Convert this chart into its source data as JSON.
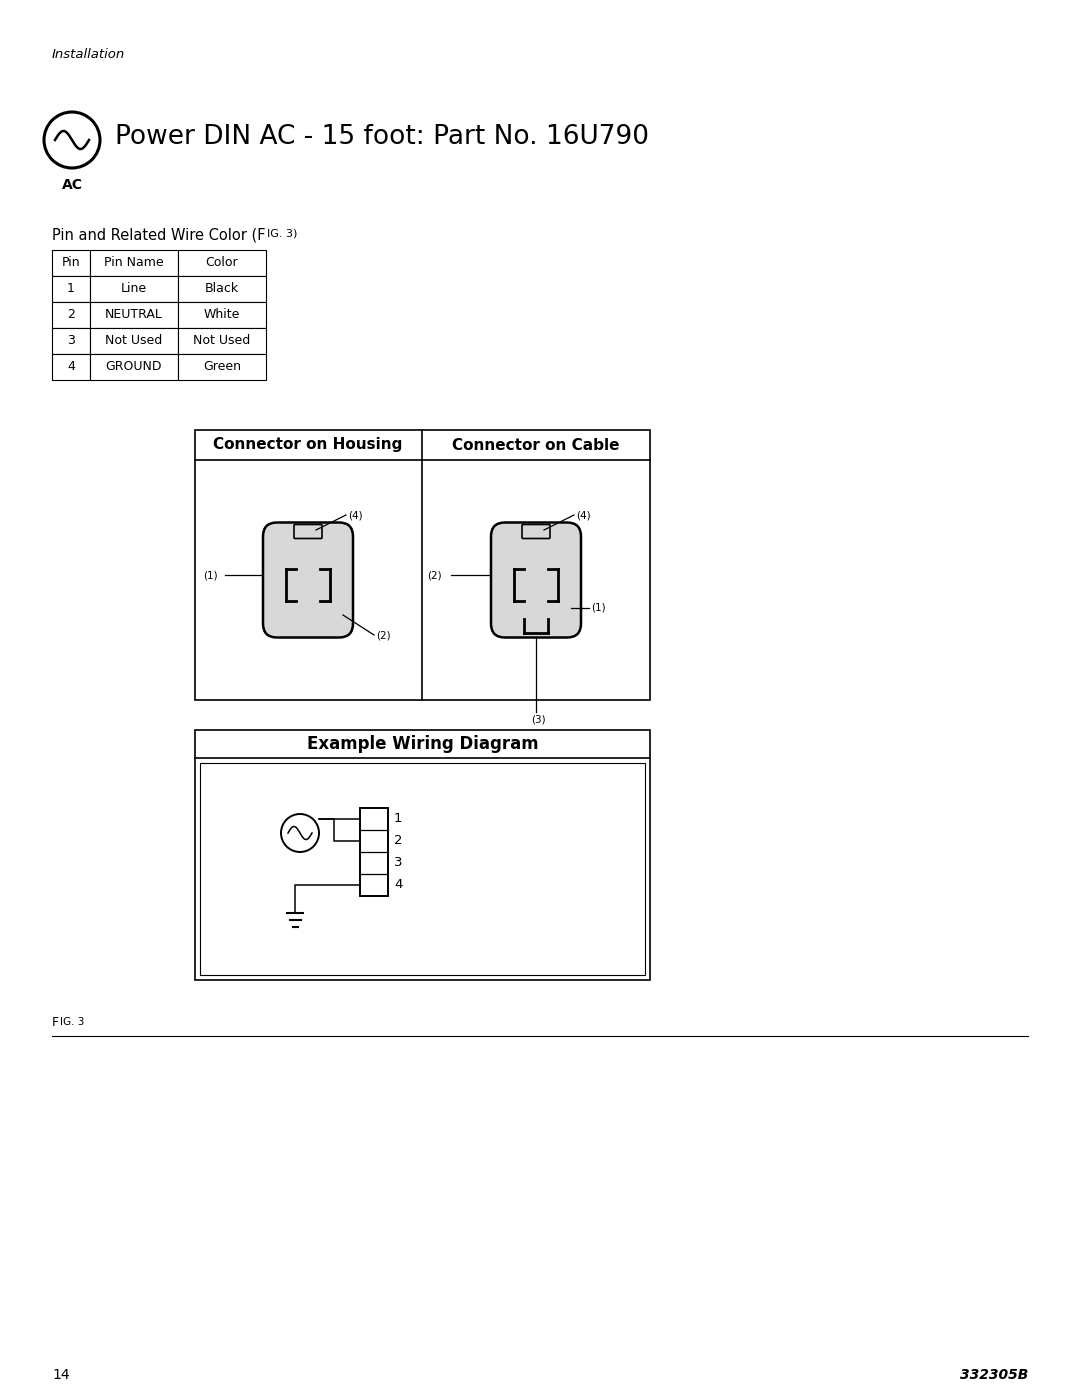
{
  "title_italic": "Installation",
  "header_text": "Power DIN AC - 15 foot: Part No. 16U790",
  "ac_label": "AC",
  "pin_table_label": "Pin and Related Wire Color (F  IG. 3)",
  "table_headers": [
    "Pin",
    "Pin Name",
    "Color"
  ],
  "table_rows": [
    [
      "1",
      "Line",
      "Black"
    ],
    [
      "2",
      "NEUTRAL",
      "White"
    ],
    [
      "3",
      "Not Used",
      "Not Used"
    ],
    [
      "4",
      "GROUND",
      "Green"
    ]
  ],
  "connector_housing_title": "Connector on Housing",
  "connector_cable_title": "Connector on Cable",
  "wiring_diagram_title": "Example Wiring Diagram",
  "fig_label_small": "F",
  "fig_label_large": "IG. 3",
  "page_number": "14",
  "part_number": "332305B",
  "bg_color": "#ffffff",
  "text_color": "#000000"
}
